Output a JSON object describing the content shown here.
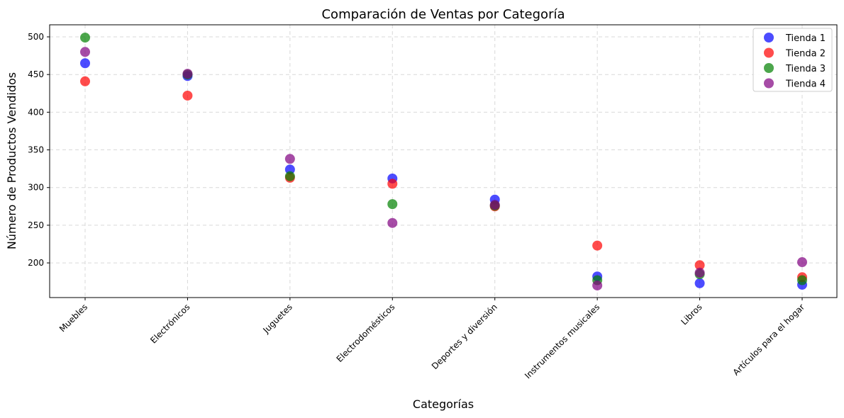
{
  "chart_data": {
    "type": "scatter",
    "title": "Comparación de Ventas por Categoría",
    "xlabel": "Categorías",
    "ylabel": "Número de Productos Vendidos",
    "categories": [
      "Muebles",
      "Electrónicos",
      "Juguetes",
      "Electrodomésticos",
      "Deportes y diversión",
      "Instrumentos musicales",
      "Libros",
      "Artículos para el hogar"
    ],
    "yticks": [
      200,
      250,
      300,
      350,
      400,
      450,
      500
    ],
    "ylim": [
      154,
      516
    ],
    "grid": true,
    "legend_position": "top-right",
    "series": [
      {
        "name": "Tienda 1",
        "color": "#0000ff",
        "values": [
          465,
          448,
          324,
          312,
          284,
          182,
          173,
          171
        ]
      },
      {
        "name": "Tienda 2",
        "color": "#ff0000",
        "values": [
          441,
          422,
          313,
          305,
          275,
          223,
          197,
          181
        ]
      },
      {
        "name": "Tienda 3",
        "color": "#008000",
        "values": [
          499,
          450,
          315,
          278,
          276,
          177,
          185,
          177
        ]
      },
      {
        "name": "Tienda 4",
        "color": "#800080",
        "values": [
          480,
          451,
          338,
          253,
          277,
          170,
          187,
          201
        ]
      }
    ]
  }
}
